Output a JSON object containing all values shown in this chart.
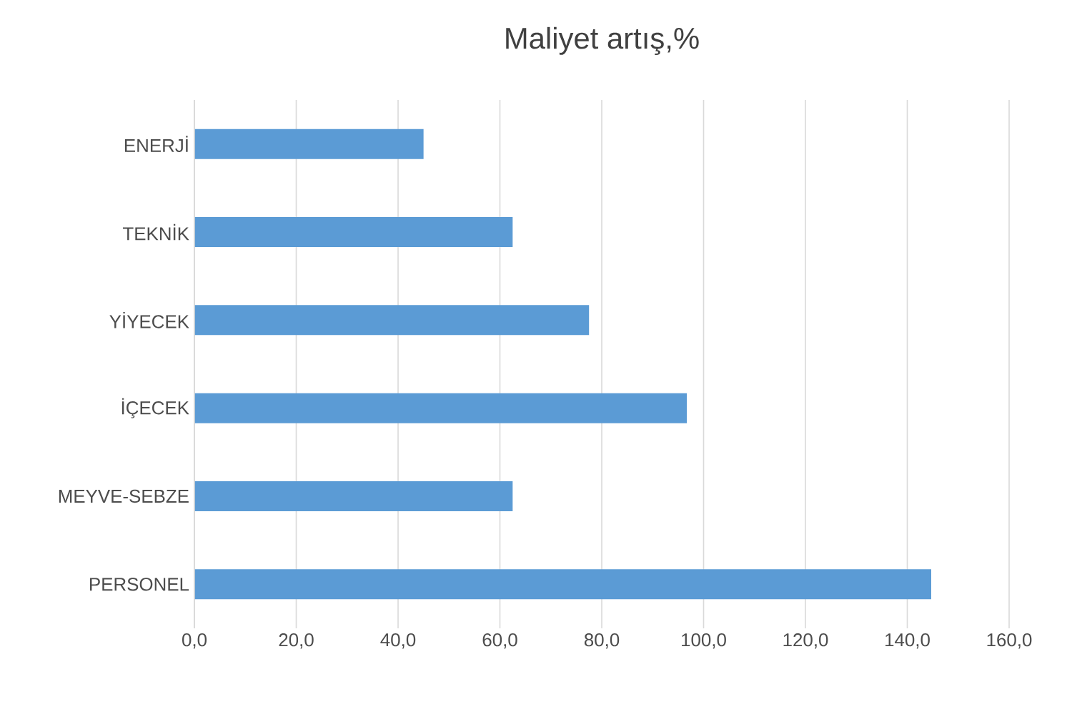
{
  "chart_data": {
    "type": "bar",
    "orientation": "horizontal",
    "title": "Maliyet artış,%",
    "categories": [
      "ENERJİ",
      "TEKNİK",
      "YİYECEK",
      "İÇECEK",
      "MEYVE-SEBZE",
      "PERSONEL"
    ],
    "values": [
      45,
      62.5,
      77.5,
      96.7,
      62.5,
      144.7
    ],
    "color": "#5b9bd5",
    "xlim": [
      0,
      160
    ],
    "xticks": [
      {
        "value": 0,
        "label": "0,0"
      },
      {
        "value": 20,
        "label": "20,0"
      },
      {
        "value": 40,
        "label": "40,0"
      },
      {
        "value": 60,
        "label": "60,0"
      },
      {
        "value": 80,
        "label": "80,0"
      },
      {
        "value": 100,
        "label": "100,0"
      },
      {
        "value": 120,
        "label": "120,0"
      },
      {
        "value": 140,
        "label": "140,0"
      },
      {
        "value": 160,
        "label": "160,0"
      }
    ],
    "grid": "x"
  }
}
